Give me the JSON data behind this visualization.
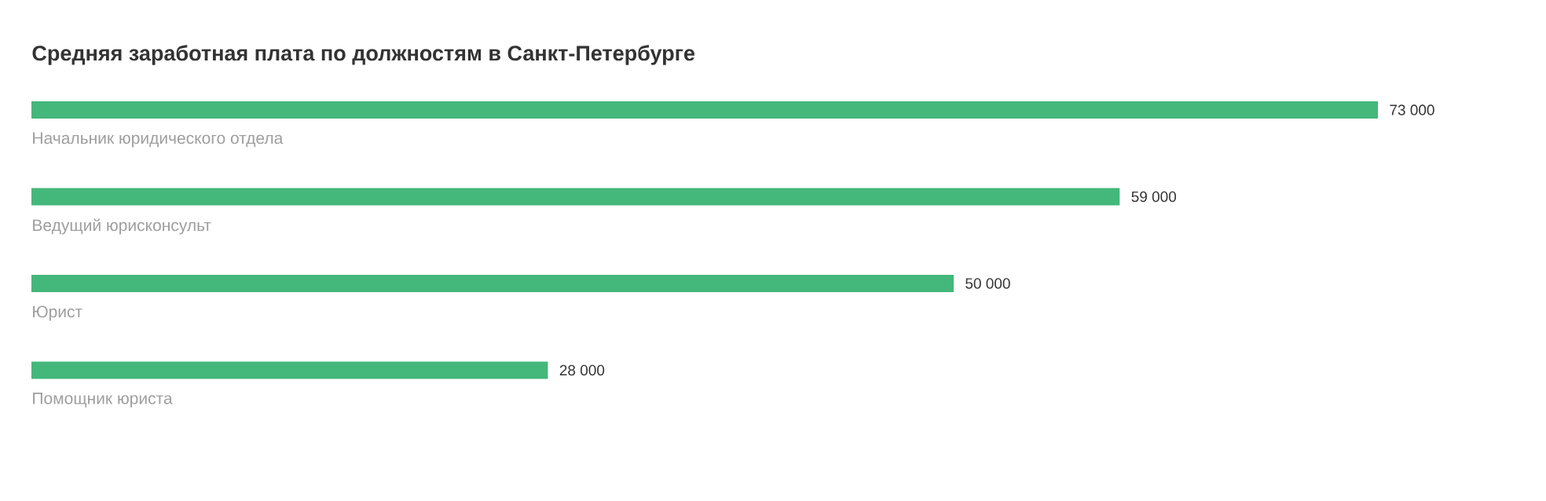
{
  "chart_data": {
    "type": "bar",
    "orientation": "horizontal",
    "title": "Средняя заработная плата по должностям в Санкт-Петербурге",
    "categories": [
      "Начальник юридического отдела",
      "Ведущий юрисконсульт",
      "Юрист",
      "Помощник юриста"
    ],
    "values": [
      73000,
      59000,
      50000,
      28000
    ],
    "value_labels": [
      "73 000",
      "59 000",
      "50 000",
      "28 000"
    ],
    "color": "#44b77b"
  }
}
